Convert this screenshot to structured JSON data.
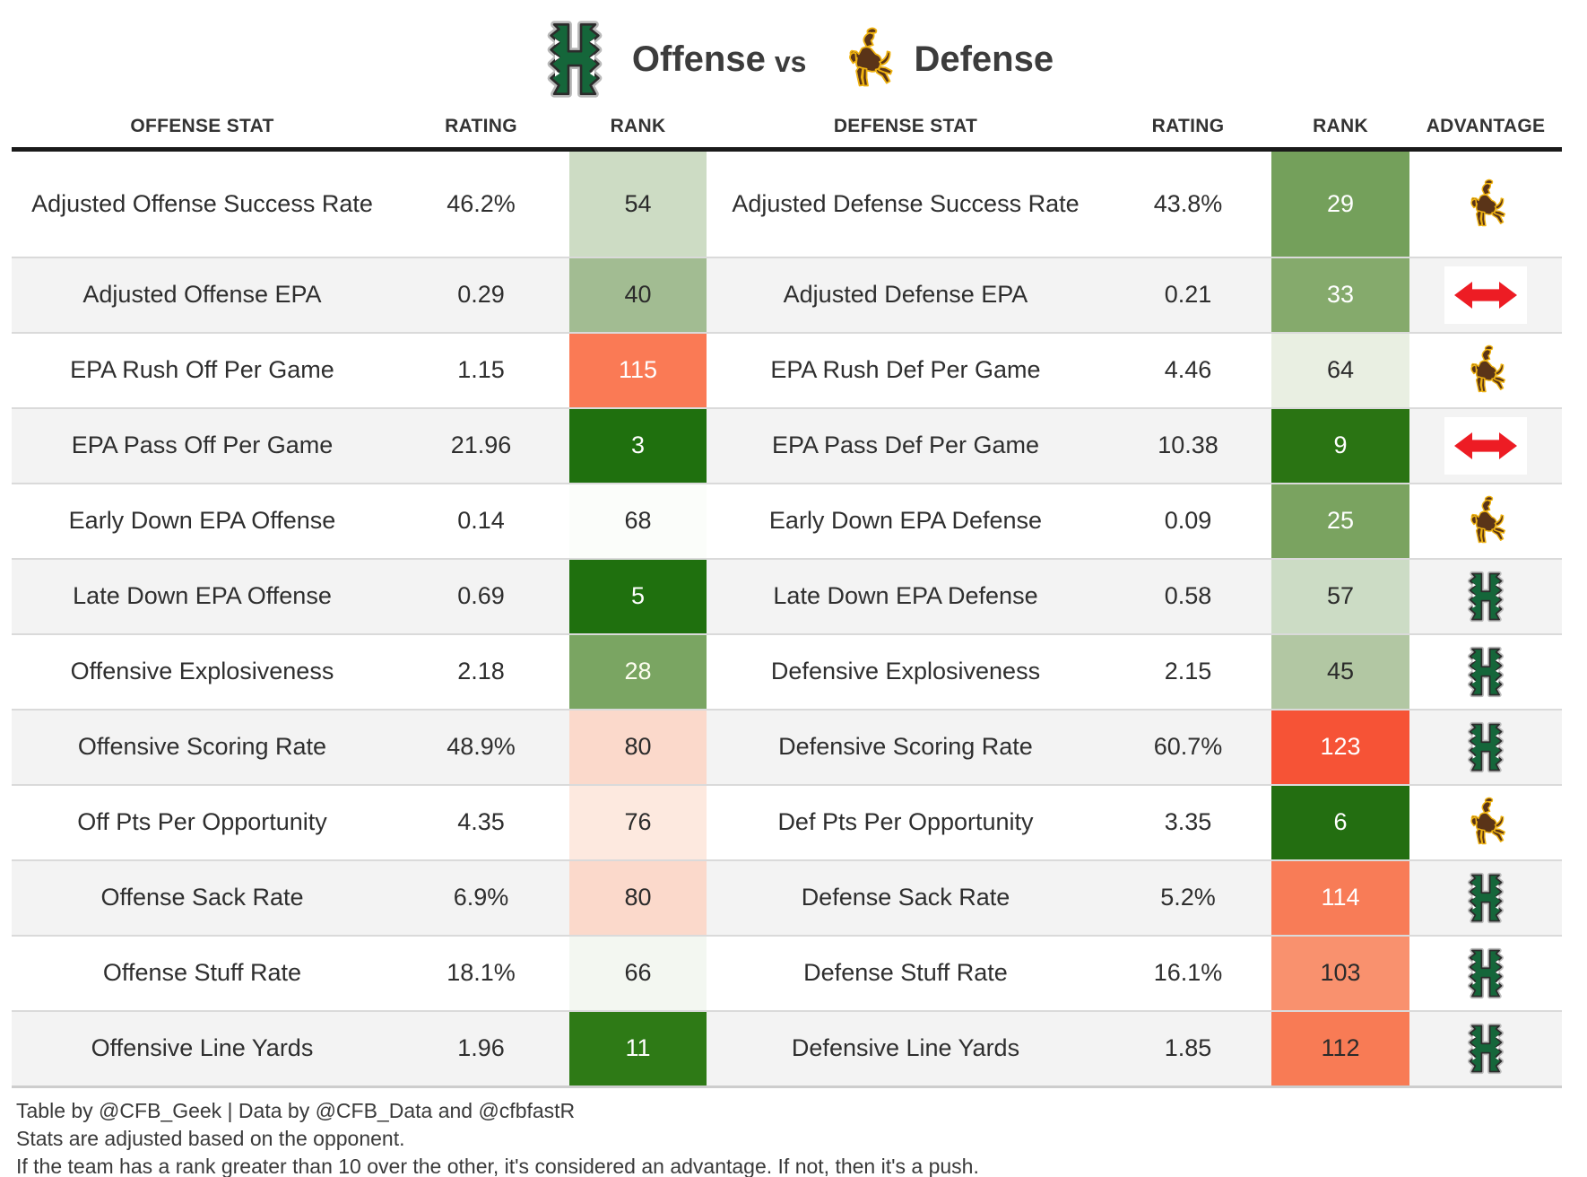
{
  "title": {
    "left_label": "Offense",
    "vs_label": "vs",
    "right_label": "Defense",
    "left_logo": "hawaii-logo",
    "right_logo": "wyoming-logo"
  },
  "colors": {
    "hawaii_green": "#15663a",
    "wyoming_brown": "#5a3418",
    "wyoming_gold": "#eeb211",
    "push_red": "#ed1c24",
    "row_stripe": "#f3f3f3",
    "header_rule": "#1a1a1a"
  },
  "chart_data": {
    "type": "table",
    "title": "Hawaii Offense vs Wyoming Defense",
    "columns": [
      "OFFENSE STAT",
      "RATING",
      "RANK",
      "DEFENSE STAT",
      "RATING",
      "RANK",
      "ADVANTAGE"
    ],
    "rows": [
      {
        "offense_stat": "Adjusted Offense Success Rate",
        "offense_rating": "46.2%",
        "offense_rank": "54",
        "offense_rank_bg": "#cddcc4",
        "offense_rank_fg": "#2b2b2b",
        "defense_stat": "Adjusted Defense Success Rate",
        "defense_rating": "43.8%",
        "defense_rank": "29",
        "defense_rank_bg": "#74a05b",
        "defense_rank_fg": "#ffffff",
        "advantage": "wyoming"
      },
      {
        "offense_stat": "Adjusted Offense EPA",
        "offense_rating": "0.29",
        "offense_rank": "40",
        "offense_rank_bg": "#a2bc92",
        "offense_rank_fg": "#2b2b2b",
        "defense_stat": "Adjusted Defense EPA",
        "defense_rating": "0.21",
        "defense_rank": "33",
        "defense_rank_bg": "#85aa6c",
        "defense_rank_fg": "#ffffff",
        "advantage": "push"
      },
      {
        "offense_stat": "EPA Rush Off Per Game",
        "offense_rating": "1.15",
        "offense_rank": "115",
        "offense_rank_bg": "#fa7a55",
        "offense_rank_fg": "#ffffff",
        "defense_stat": "EPA Rush Def Per Game",
        "defense_rating": "4.46",
        "defense_rank": "64",
        "defense_rank_bg": "#e9efe2",
        "defense_rank_fg": "#2b2b2b",
        "advantage": "wyoming"
      },
      {
        "offense_stat": "EPA Pass Off Per Game",
        "offense_rating": "21.96",
        "offense_rank": "3",
        "offense_rank_bg": "#1f700e",
        "offense_rank_fg": "#ffffff",
        "defense_stat": "EPA Pass Def Per Game",
        "defense_rating": "10.38",
        "defense_rank": "9",
        "defense_rank_bg": "#2a7413",
        "defense_rank_fg": "#ffffff",
        "advantage": "push"
      },
      {
        "offense_stat": "Early Down EPA Offense",
        "offense_rating": "0.14",
        "offense_rank": "68",
        "offense_rank_bg": "#fbfdfa",
        "offense_rank_fg": "#2b2b2b",
        "defense_stat": "Early Down EPA Defense",
        "defense_rating": "0.09",
        "defense_rank": "25",
        "defense_rank_bg": "#7aa360",
        "defense_rank_fg": "#ffffff",
        "advantage": "wyoming"
      },
      {
        "offense_stat": "Late Down EPA Offense",
        "offense_rating": "0.69",
        "offense_rank": "5",
        "offense_rank_bg": "#1f700e",
        "offense_rank_fg": "#ffffff",
        "defense_stat": "Late Down EPA Defense",
        "defense_rating": "0.58",
        "defense_rank": "57",
        "defense_rank_bg": "#ccdcc5",
        "defense_rank_fg": "#2b2b2b",
        "advantage": "hawaii"
      },
      {
        "offense_stat": "Offensive Explosiveness",
        "offense_rating": "2.18",
        "offense_rank": "28",
        "offense_rank_bg": "#7aa562",
        "offense_rank_fg": "#fdfdef",
        "defense_stat": "Defensive Explosiveness",
        "defense_rating": "2.15",
        "defense_rank": "45",
        "defense_rank_bg": "#b2c7a3",
        "defense_rank_fg": "#2b2b2b",
        "advantage": "hawaii"
      },
      {
        "offense_stat": "Offensive Scoring Rate",
        "offense_rating": "48.9%",
        "offense_rank": "80",
        "offense_rank_bg": "#fbd9cb",
        "offense_rank_fg": "#2b2b2b",
        "defense_stat": "Defensive Scoring Rate",
        "defense_rating": "60.7%",
        "defense_rank": "123",
        "defense_rank_bg": "#f65336",
        "defense_rank_fg": "#ffffff",
        "advantage": "hawaii"
      },
      {
        "offense_stat": "Off Pts Per Opportunity",
        "offense_rating": "4.35",
        "offense_rank": "76",
        "offense_rank_bg": "#fde9df",
        "offense_rank_fg": "#2b2b2b",
        "defense_stat": "Def Pts Per Opportunity",
        "defense_rating": "3.35",
        "defense_rank": "6",
        "defense_rank_bg": "#236e11",
        "defense_rank_fg": "#ffffff",
        "advantage": "wyoming"
      },
      {
        "offense_stat": "Offense Sack Rate",
        "offense_rating": "6.9%",
        "offense_rank": "80",
        "offense_rank_bg": "#fbd9cb",
        "offense_rank_fg": "#2b2b2b",
        "defense_stat": "Defense Sack Rate",
        "defense_rating": "5.2%",
        "defense_rank": "114",
        "defense_rank_bg": "#f87c57",
        "defense_rank_fg": "#ffffff",
        "advantage": "hawaii"
      },
      {
        "offense_stat": "Offense Stuff Rate",
        "offense_rating": "18.1%",
        "offense_rank": "66",
        "offense_rank_bg": "#f3f7f1",
        "offense_rank_fg": "#2b2b2b",
        "defense_stat": "Defense Stuff Rate",
        "defense_rating": "16.1%",
        "defense_rank": "103",
        "defense_rank_bg": "#f9916e",
        "defense_rank_fg": "#2b2b2b",
        "advantage": "hawaii"
      },
      {
        "offense_stat": "Offensive Line Yards",
        "offense_rating": "1.96",
        "offense_rank": "11",
        "offense_rank_bg": "#2e7a16",
        "offense_rank_fg": "#ffffff",
        "defense_stat": "Defensive Line Yards",
        "defense_rating": "1.85",
        "defense_rank": "112",
        "defense_rank_bg": "#f87b55",
        "defense_rank_fg": "#2b2b2b",
        "advantage": "hawaii"
      }
    ]
  },
  "footer": {
    "line1": "Table by @CFB_Geek | Data by @CFB_Data and @cfbfastR",
    "line2": "Stats are adjusted based on the opponent.",
    "line3": "If the team has a rank greater than 10 over the other, it's considered an advantage. If not, then it's a push."
  }
}
